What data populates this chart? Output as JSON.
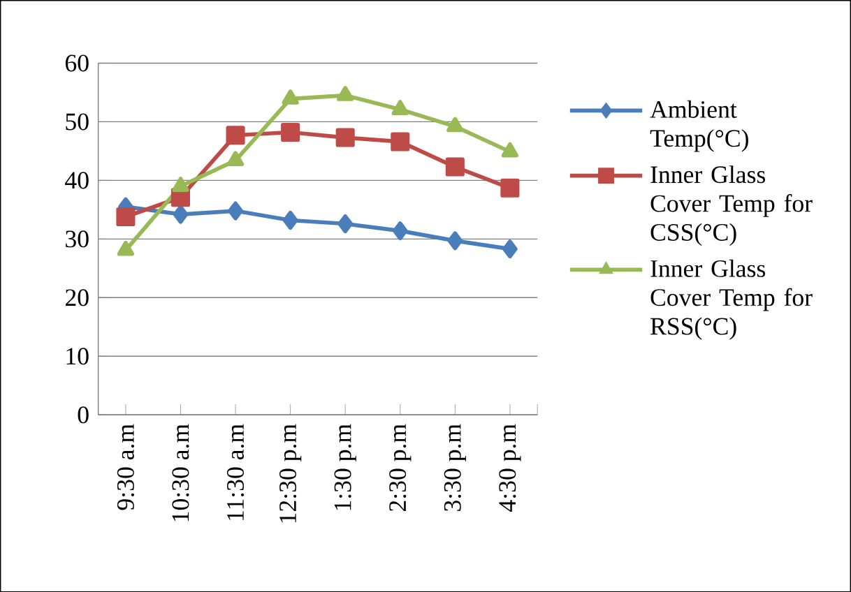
{
  "chart_data": {
    "type": "line",
    "categories": [
      "9:30 a.m",
      "10:30 a.m",
      "11:30 a.m",
      "12:30 p.m",
      "1:30 p.m",
      "2:30 p.m",
      "3:30 p.m",
      "4:30 p.m"
    ],
    "series": [
      {
        "name": "Ambient Temp(°C)",
        "color": "#4a7ebb",
        "marker": "diamond",
        "values": [
          35.5,
          34.2,
          34.8,
          33.2,
          32.6,
          31.4,
          29.7,
          28.3
        ]
      },
      {
        "name": "Inner Glass Cover Temp for CSS(°C)",
        "color": "#be4b48",
        "marker": "square",
        "values": [
          33.8,
          37.1,
          47.7,
          48.2,
          47.3,
          46.6,
          42.3,
          38.7
        ]
      },
      {
        "name": "Inner Glass Cover Temp for RSS(°C)",
        "color": "#98b954",
        "marker": "triangle",
        "values": [
          28.1,
          39.0,
          43.4,
          53.9,
          54.5,
          52.1,
          49.2,
          44.9
        ]
      }
    ],
    "ylim": [
      0,
      60
    ],
    "yticks": [
      0,
      10,
      20,
      30,
      40,
      50,
      60
    ],
    "grid": "y",
    "legend": "right"
  }
}
